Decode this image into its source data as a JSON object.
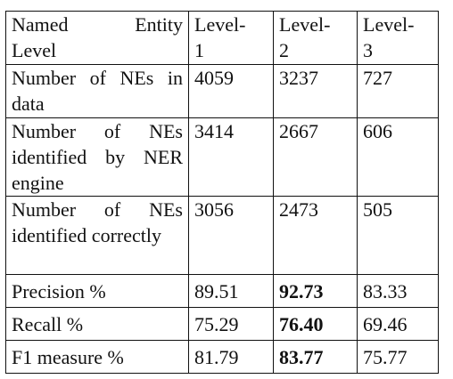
{
  "table": {
    "header": {
      "label_line1_left": "Named",
      "label_line1_right": "Entity",
      "label_line2": "Level",
      "levels": [
        {
          "line1": "Level-",
          "line2": "1"
        },
        {
          "line1": "Level-",
          "line2": "2"
        },
        {
          "line1": "Level-",
          "line2": "3"
        }
      ]
    },
    "rows": [
      {
        "label": "Number of NEs in data",
        "values": [
          "4059",
          "3237",
          "727"
        ],
        "bold": [
          false,
          false,
          false
        ]
      },
      {
        "label": "Number of NEs identified by NER engine",
        "values": [
          "3414",
          "2667",
          "606"
        ],
        "bold": [
          false,
          false,
          false
        ]
      },
      {
        "label": "Number of NEs identified correctly",
        "values": [
          "3056",
          "2473",
          "505"
        ],
        "bold": [
          false,
          false,
          false
        ]
      },
      {
        "label": "Precision %",
        "values": [
          "89.51",
          "92.73",
          "83.33"
        ],
        "bold": [
          false,
          true,
          false
        ]
      },
      {
        "label": "Recall %",
        "values": [
          "75.29",
          "76.40",
          "69.46"
        ],
        "bold": [
          false,
          true,
          false
        ]
      },
      {
        "label": "F1 measure %",
        "values": [
          "81.79",
          "83.77",
          "75.77"
        ],
        "bold": [
          false,
          true,
          false
        ]
      }
    ]
  }
}
